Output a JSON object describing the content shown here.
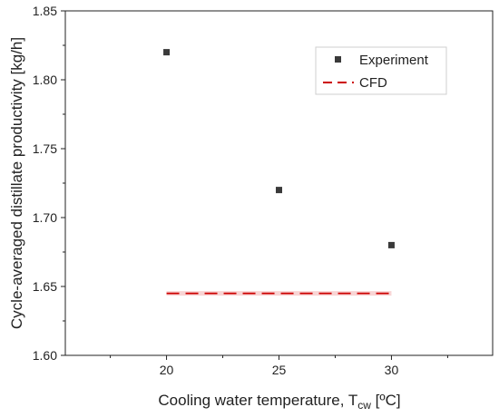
{
  "chart_data": {
    "type": "scatter",
    "title": "",
    "xlabel": "Cooling water temperature, T",
    "xlabel_subscript": "cw",
    "xlabel_suffix": " [ºC]",
    "ylabel": "Cycle-averaged distillate productivity [kg/h]",
    "xlim": [
      15.5,
      34.5
    ],
    "ylim": [
      1.6,
      1.85
    ],
    "x_ticks": [
      20,
      25,
      30
    ],
    "x_tick_labels": [
      "20",
      "25",
      "30"
    ],
    "y_ticks": [
      1.6,
      1.65,
      1.7,
      1.75,
      1.8,
      1.85
    ],
    "y_tick_labels": [
      "1.60",
      "1.65",
      "1.70",
      "1.75",
      "1.80",
      "1.85"
    ],
    "grid": false,
    "legend_position": "top-right",
    "series": [
      {
        "name": "Experiment",
        "kind": "scatter",
        "marker": "square",
        "color": "#3a3a3a",
        "x": [
          20,
          25,
          30
        ],
        "y": [
          1.82,
          1.72,
          1.68
        ]
      },
      {
        "name": "CFD",
        "kind": "line",
        "style": "dashed",
        "color": "#cc0000",
        "x": [
          20,
          30
        ],
        "y": [
          1.645,
          1.645
        ]
      }
    ]
  }
}
